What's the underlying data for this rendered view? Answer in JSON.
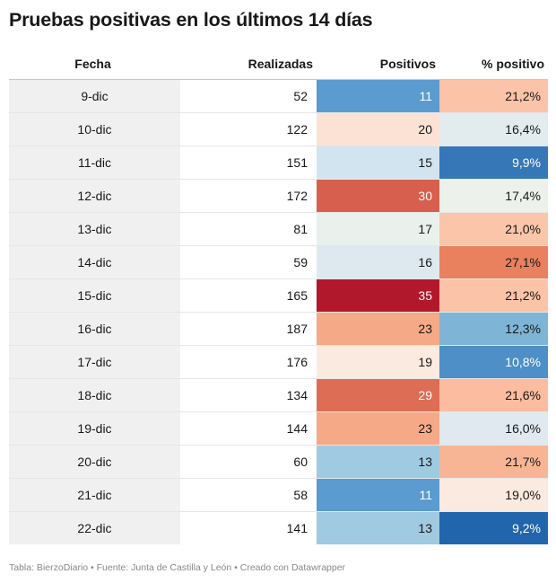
{
  "title": "Pruebas positivas en los últimos 14 días",
  "headers": {
    "fecha": "Fecha",
    "realizadas": "Realizadas",
    "positivos": "Positivos",
    "pct": "% positivo"
  },
  "footer": "Tabla: BierzoDiario • Fuente: Junta de Castilla y León • Creado con Datawrapper",
  "chart_data": {
    "type": "table",
    "columns": [
      "Fecha",
      "Realizadas",
      "Positivos",
      "% positivo"
    ],
    "rows": [
      {
        "fecha": "9-dic",
        "realizadas": "52",
        "positivos": "11",
        "pct": "21,2%",
        "pos_color": "#5b9bcf",
        "pct_color": "#fbc3a7"
      },
      {
        "fecha": "10-dic",
        "realizadas": "122",
        "positivos": "20",
        "pct": "16,4%",
        "pos_color": "#fbe2d5",
        "pct_color": "#e2ebee"
      },
      {
        "fecha": "11-dic",
        "realizadas": "151",
        "positivos": "15",
        "pct": "9,9%",
        "pos_color": "#d1e4f0",
        "pct_color": "#3677b8"
      },
      {
        "fecha": "12-dic",
        "realizadas": "172",
        "positivos": "30",
        "pct": "17,4%",
        "pos_color": "#d6604d",
        "pct_color": "#edf1ec"
      },
      {
        "fecha": "13-dic",
        "realizadas": "81",
        "positivos": "17",
        "pct": "21,0%",
        "pos_color": "#eaf0ec",
        "pct_color": "#fbc5a9"
      },
      {
        "fecha": "14-dic",
        "realizadas": "59",
        "positivos": "16",
        "pct": "27,1%",
        "pos_color": "#dde9ee",
        "pct_color": "#e9815f"
      },
      {
        "fecha": "15-dic",
        "realizadas": "165",
        "positivos": "35",
        "pct": "21,2%",
        "pos_color": "#b2182b",
        "pct_color": "#fbc3a7"
      },
      {
        "fecha": "16-dic",
        "realizadas": "187",
        "positivos": "23",
        "pct": "12,3%",
        "pos_color": "#f6a986",
        "pct_color": "#7eb4d6"
      },
      {
        "fecha": "17-dic",
        "realizadas": "176",
        "positivos": "19",
        "pct": "10,8%",
        "pos_color": "#fbeadf",
        "pct_color": "#4d8fc6"
      },
      {
        "fecha": "18-dic",
        "realizadas": "134",
        "positivos": "29",
        "pct": "21,6%",
        "pos_color": "#de6d55",
        "pct_color": "#fbbca0"
      },
      {
        "fecha": "19-dic",
        "realizadas": "144",
        "positivos": "23",
        "pct": "16,0%",
        "pos_color": "#f6a986",
        "pct_color": "#dfe9ef"
      },
      {
        "fecha": "20-dic",
        "realizadas": "60",
        "positivos": "13",
        "pct": "21,7%",
        "pos_color": "#a0c9e2",
        "pct_color": "#f8b596"
      },
      {
        "fecha": "21-dic",
        "realizadas": "58",
        "positivos": "11",
        "pct": "19,0%",
        "pos_color": "#5b9bcf",
        "pct_color": "#fbeadf"
      },
      {
        "fecha": "22-dic",
        "realizadas": "141",
        "positivos": "13",
        "pct": "9,2%",
        "pos_color": "#a0c9e2",
        "pct_color": "#2166ac"
      }
    ]
  }
}
